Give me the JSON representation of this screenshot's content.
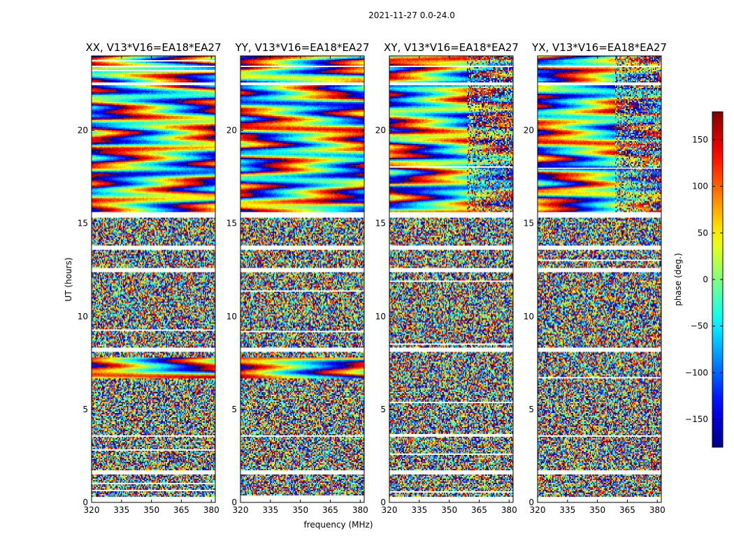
{
  "figure": {
    "suptitle": "2021-11-27 0.0-24.0",
    "xlabel": "frequency (MHz)",
    "ylabel": "UT (hours)",
    "colorbar": {
      "label": "phase (deg.)",
      "ticks": [
        "150",
        "100",
        "50",
        "0",
        "−50",
        "−100",
        "−150"
      ],
      "range": [
        -180,
        180
      ],
      "colormap": "jet"
    },
    "x_ticks": [
      "320",
      "335",
      "350",
      "365",
      "380"
    ],
    "y_ticks": [
      "0",
      "5",
      "10",
      "15",
      "20"
    ]
  },
  "chart_data": [
    {
      "type": "heatmap",
      "title": "XX, V13*V16=EA18*EA27",
      "xlabel": "frequency (MHz)",
      "ylabel": "UT (hours)",
      "xlim": [
        320,
        382
      ],
      "ylim": [
        0,
        24
      ],
      "x_ticks": [
        320,
        335,
        350,
        365,
        380
      ],
      "y_ticks": [
        0,
        5,
        10,
        15,
        20
      ],
      "colormap": "jet",
      "clim": [
        -180,
        180
      ],
      "flagged_hours": [
        [
          0,
          0.3
        ],
        [
          1.5,
          1.7
        ],
        [
          3.5,
          3.6
        ],
        [
          8.1,
          8.3
        ],
        [
          12.4,
          12.6
        ],
        [
          13.6,
          13.8
        ],
        [
          15.3,
          15.6
        ],
        [
          22.4,
          22.6
        ],
        [
          23.4,
          23.5
        ]
      ],
      "coherent_hours": [
        [
          6.7,
          7.8
        ],
        [
          15.6,
          24
        ]
      ]
    },
    {
      "type": "heatmap",
      "title": "YY, V13*V16=EA18*EA27",
      "xlabel": "frequency (MHz)",
      "ylabel": "UT (hours)",
      "xlim": [
        320,
        382
      ],
      "ylim": [
        0,
        24
      ],
      "x_ticks": [
        320,
        335,
        350,
        365,
        380
      ],
      "y_ticks": [
        0,
        5,
        10,
        15,
        20
      ],
      "colormap": "jet",
      "clim": [
        -180,
        180
      ],
      "flagged_hours": [
        [
          0,
          0.3
        ],
        [
          1.5,
          1.7
        ],
        [
          3.5,
          3.6
        ],
        [
          8.1,
          8.3
        ],
        [
          12.4,
          12.6
        ],
        [
          13.6,
          13.8
        ],
        [
          15.3,
          15.6
        ],
        [
          22.4,
          22.6
        ],
        [
          23.4,
          23.5
        ]
      ],
      "coherent_hours": [
        [
          6.7,
          7.8
        ],
        [
          15.6,
          24
        ]
      ]
    },
    {
      "type": "heatmap",
      "title": "XY, V13*V16=EA18*EA27",
      "xlabel": "frequency (MHz)",
      "ylabel": "UT (hours)",
      "xlim": [
        320,
        382
      ],
      "ylim": [
        0,
        24
      ],
      "x_ticks": [
        320,
        335,
        350,
        365,
        380
      ],
      "y_ticks": [
        0,
        5,
        10,
        15,
        20
      ],
      "colormap": "jet",
      "clim": [
        -180,
        180
      ],
      "flagged_hours": [
        [
          0,
          0.3
        ],
        [
          1.5,
          1.7
        ],
        [
          3.5,
          3.6
        ],
        [
          8.1,
          8.3
        ],
        [
          12.4,
          12.6
        ],
        [
          13.6,
          13.8
        ],
        [
          15.3,
          15.6
        ],
        [
          22.4,
          22.6
        ],
        [
          23.4,
          23.5
        ]
      ],
      "coherent_hours": [
        [
          15.6,
          24
        ]
      ]
    },
    {
      "type": "heatmap",
      "title": "YX, V13*V16=EA18*EA27",
      "xlabel": "frequency (MHz)",
      "ylabel": "UT (hours)",
      "xlim": [
        320,
        382
      ],
      "ylim": [
        0,
        24
      ],
      "x_ticks": [
        320,
        335,
        350,
        365,
        380
      ],
      "y_ticks": [
        0,
        5,
        10,
        15,
        20
      ],
      "colormap": "jet",
      "clim": [
        -180,
        180
      ],
      "flagged_hours": [
        [
          0,
          0.3
        ],
        [
          1.5,
          1.7
        ],
        [
          3.5,
          3.6
        ],
        [
          8.1,
          8.3
        ],
        [
          12.4,
          12.6
        ],
        [
          13.6,
          13.8
        ],
        [
          15.3,
          15.6
        ],
        [
          22.4,
          22.6
        ],
        [
          23.4,
          23.5
        ]
      ],
      "coherent_hours": [
        [
          15.6,
          24
        ]
      ]
    }
  ]
}
